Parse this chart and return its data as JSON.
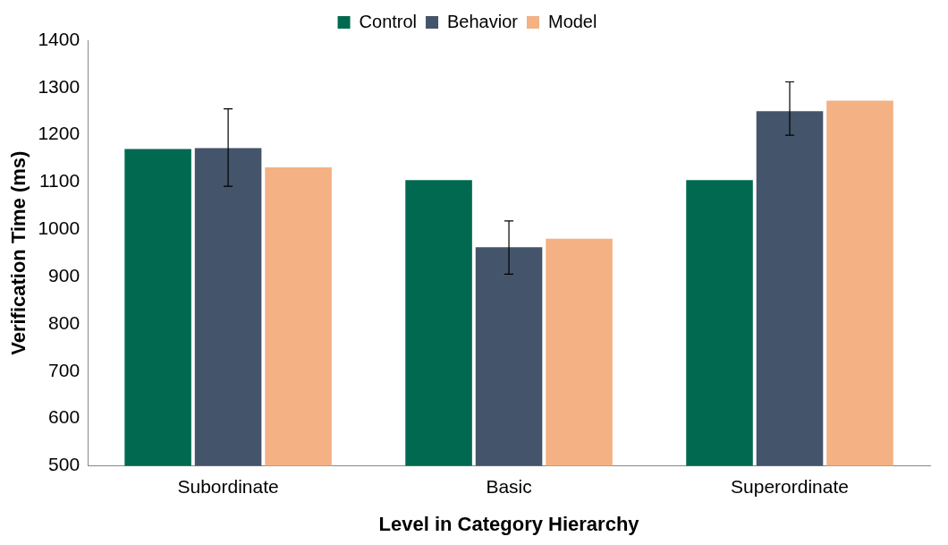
{
  "chart_data": {
    "type": "bar",
    "xlabel": "Level in Category Hierarchy",
    "ylabel": "Verification Time (ms)",
    "categories": [
      "Subordinate",
      "Basic",
      "Superordinate"
    ],
    "series": [
      {
        "name": "Control",
        "color": "#00694f",
        "values": [
          1170,
          1104,
          1104
        ]
      },
      {
        "name": "Behavior",
        "color": "#44546a",
        "values": [
          1172,
          962,
          1250
        ],
        "errors": [
          [
            1091,
            1255
          ],
          [
            905,
            1018
          ],
          [
            1199,
            1312
          ]
        ]
      },
      {
        "name": "Model",
        "color": "#f4b183",
        "values": [
          1131,
          980,
          1272
        ]
      }
    ],
    "ylim": [
      500,
      1400
    ],
    "yticks": [
      500,
      600,
      700,
      800,
      900,
      1000,
      1100,
      1200,
      1300,
      1400
    ],
    "legend": "top",
    "grid": false
  }
}
